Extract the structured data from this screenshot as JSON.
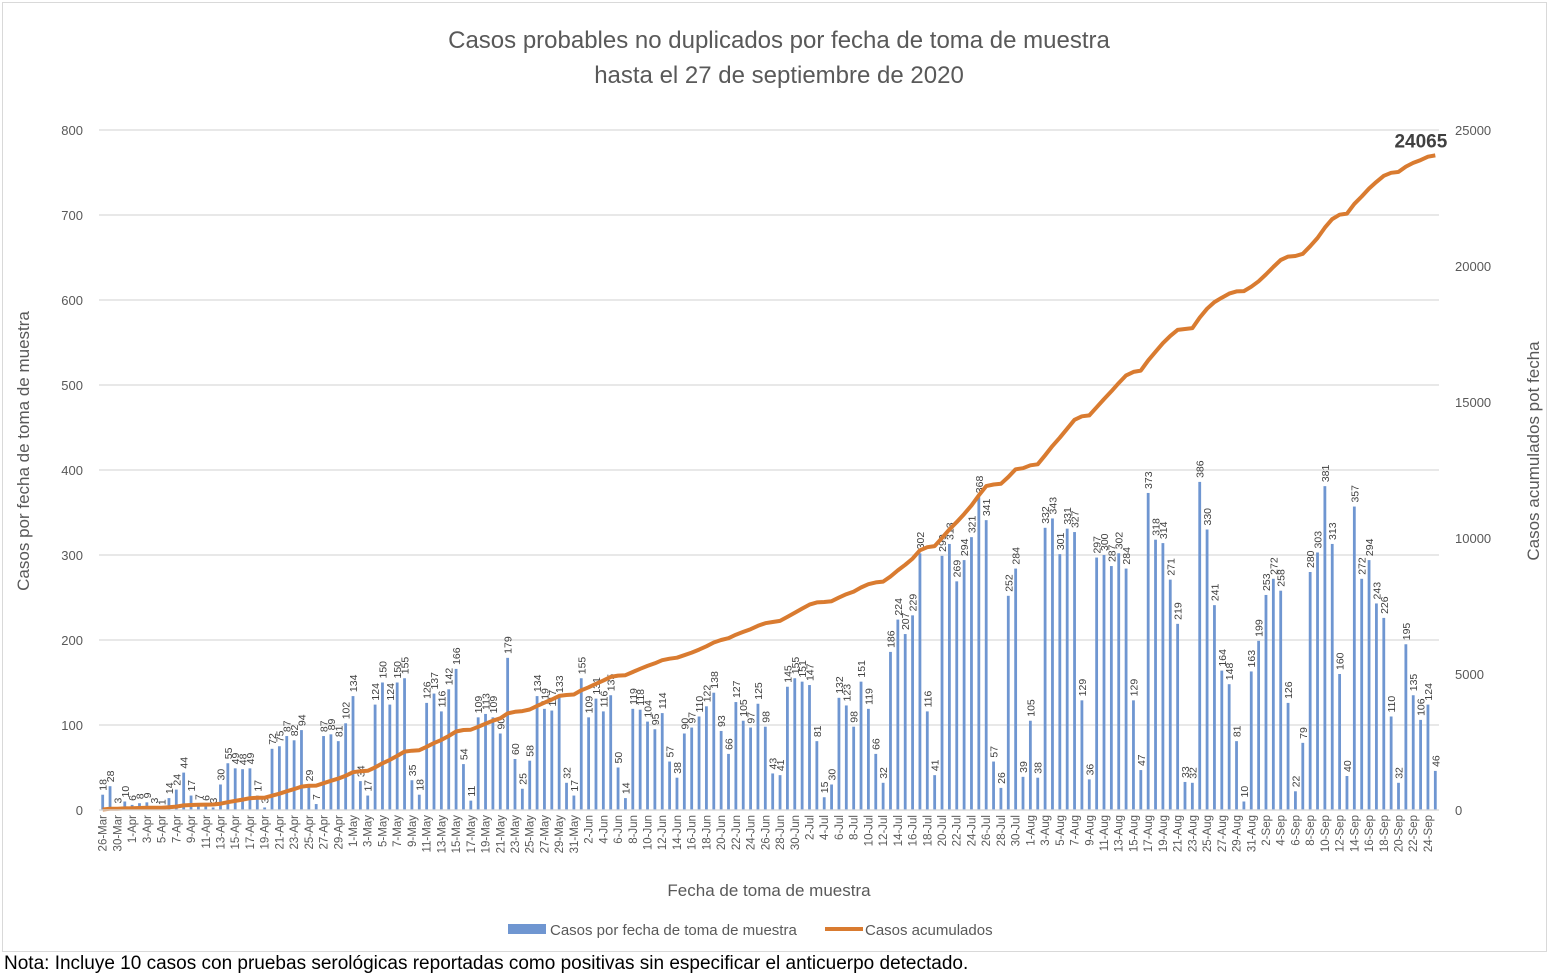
{
  "chart_data": {
    "type": "bar+line",
    "title": "Casos probables no duplicados por fecha de toma de muestra",
    "subtitle": "hasta el  27 de septiembre de 2020",
    "xlabel": "Fecha de toma de muestra",
    "ylabel": "Casos por fecha de toma de muestra",
    "y2label": "Casos acumulados pot fecha",
    "ylim": [
      0,
      800
    ],
    "y2lim": [
      0,
      25000
    ],
    "yticks": [
      "0",
      "100",
      "200",
      "300",
      "400",
      "500",
      "600",
      "700",
      "800"
    ],
    "y2ticks": [
      "0",
      "5000",
      "10000",
      "15000",
      "20000",
      "25000"
    ],
    "grid": true,
    "legend_position": "bottom",
    "xtick_labels": [
      "26-Mar",
      "30-Mar",
      "1-Apr",
      "3-Apr",
      "5-Apr",
      "7-Apr",
      "9-Apr",
      "11-Apr",
      "13-Apr",
      "15-Apr",
      "17-Apr",
      "19-Apr",
      "21-Apr",
      "23-Apr",
      "25-Apr",
      "27-Apr",
      "29-Apr",
      "1-May",
      "3-May",
      "5-May",
      "7-May",
      "9-May",
      "11-May",
      "13-May",
      "15-May",
      "17-May",
      "19-May",
      "21-May",
      "23-May",
      "25-May",
      "27-May",
      "29-May",
      "31-May",
      "2-Jun",
      "4-Jun",
      "6-Jun",
      "8-Jun",
      "10-Jun",
      "12-Jun",
      "14-Jun",
      "16-Jun",
      "18-Jun",
      "20-Jun",
      "22-Jun",
      "24-Jun",
      "26-Jun",
      "28-Jun",
      "30-Jun",
      "2-Jul",
      "4-Jul",
      "6-Jul",
      "8-Jul",
      "10-Jul",
      "12-Jul",
      "14-Jul",
      "16-Jul",
      "18-Jul",
      "20-Jul",
      "22-Jul",
      "24-Jul",
      "26-Jul",
      "28-Jul",
      "30-Jul",
      "1-Aug",
      "3-Aug",
      "5-Aug",
      "7-Aug",
      "9-Aug",
      "11-Aug",
      "13-Aug",
      "15-Aug",
      "17-Aug",
      "19-Aug",
      "21-Aug",
      "23-Aug",
      "25-Aug",
      "27-Aug",
      "29-Aug",
      "31-Aug",
      "2-Sep",
      "4-Sep",
      "6-Sep",
      "8-Sep",
      "10-Sep",
      "12-Sep",
      "14-Sep",
      "16-Sep",
      "18-Sep",
      "20-Sep",
      "22-Sep",
      "24-Sep"
    ],
    "series": [
      {
        "name": "Casos por fecha de toma de muestra",
        "type": "bar",
        "color": "#6f96d1",
        "values": [
          18,
          28,
          3,
          10,
          6,
          8,
          9,
          3,
          1,
          14,
          24,
          44,
          17,
          7,
          6,
          3,
          30,
          55,
          49,
          48,
          49,
          17,
          3,
          72,
          75,
          87,
          82,
          94,
          29,
          7,
          87,
          89,
          81,
          102,
          134,
          34,
          17,
          124,
          150,
          124,
          150,
          155,
          35,
          18,
          126,
          137,
          116,
          142,
          166,
          54,
          11,
          109,
          113,
          109,
          90,
          179,
          60,
          25,
          58,
          134,
          119,
          117,
          133,
          32,
          17,
          155,
          109,
          131,
          116,
          135,
          50,
          14,
          119,
          118,
          104,
          95,
          114,
          57,
          38,
          90,
          97,
          110,
          122,
          138,
          93,
          66,
          127,
          105,
          97,
          125,
          98,
          43,
          41,
          145,
          155,
          151,
          147,
          81,
          15,
          30,
          132,
          123,
          98,
          151,
          119,
          66,
          32,
          186,
          224,
          207,
          229,
          302,
          116,
          41,
          299,
          313,
          269,
          294,
          321,
          368,
          341,
          57,
          26,
          252,
          284,
          39,
          105,
          38,
          332,
          343,
          301,
          331,
          327,
          129,
          36,
          297,
          300,
          287,
          302,
          284,
          129,
          47,
          373,
          318,
          314,
          271,
          219,
          33,
          32,
          386,
          330,
          241,
          164,
          148,
          81,
          10,
          163,
          199,
          253,
          272,
          258,
          126,
          22,
          79,
          280,
          303,
          381,
          313,
          160,
          40,
          357,
          272,
          294,
          243,
          226,
          110,
          32,
          195,
          135,
          106,
          124,
          46
        ]
      },
      {
        "name": "Casos acumulados",
        "type": "line",
        "color": "#d97b30",
        "final_value_label": "24065"
      }
    ]
  },
  "footnote": "Nota: Incluye 10 casos con pruebas serológicas reportadas como positivas sin especificar el anticuerpo detectado."
}
